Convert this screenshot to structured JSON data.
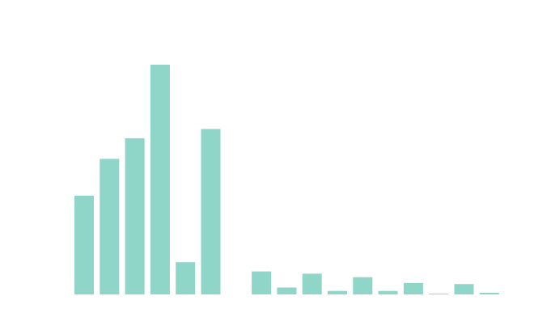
{
  "chart_data": {
    "type": "bar",
    "title": "",
    "xlabel": "",
    "ylabel": "",
    "grid": false,
    "legend": "none",
    "color": "#8fd5c8",
    "ylim": [
      0,
      100
    ],
    "values": [
      43,
      59,
      68,
      100,
      14,
      72,
      null,
      10,
      3,
      9,
      1.5,
      7.5,
      1.5,
      5,
      0.3,
      4.5,
      0.7
    ]
  }
}
